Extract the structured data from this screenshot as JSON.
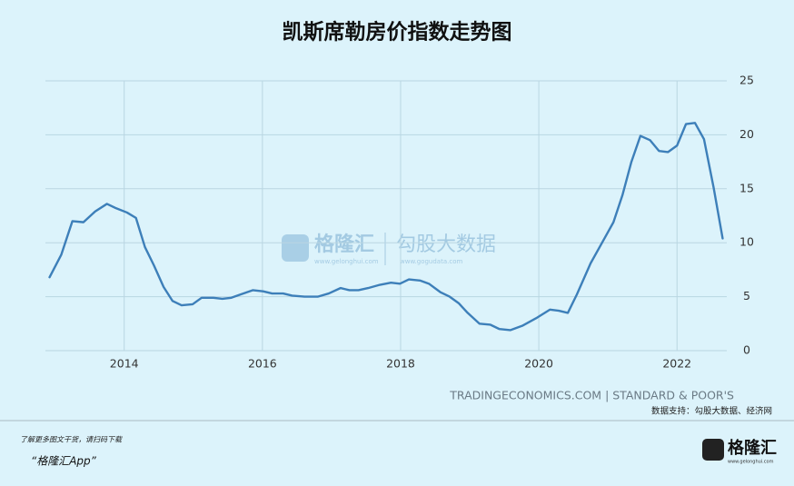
{
  "chart_data": {
    "type": "line",
    "title": "凯斯席勒房价指数走势图",
    "x": [
      2012.92,
      2013.09,
      2013.25,
      2013.41,
      2013.58,
      2013.75,
      2013.88,
      2014.04,
      2014.17,
      2014.3,
      2014.43,
      2014.57,
      2014.7,
      2014.83,
      2014.99,
      2015.12,
      2015.29,
      2015.42,
      2015.55,
      2015.68,
      2015.86,
      2016.01,
      2016.14,
      2016.3,
      2016.43,
      2016.61,
      2016.8,
      2016.96,
      2017.13,
      2017.26,
      2017.39,
      2017.53,
      2017.7,
      2017.86,
      2017.99,
      2018.12,
      2018.28,
      2018.41,
      2018.58,
      2018.71,
      2018.84,
      2018.97,
      2019.14,
      2019.3,
      2019.43,
      2019.59,
      2019.76,
      2019.96,
      2020.16,
      2020.29,
      2020.42,
      2020.55,
      2020.75,
      2020.95,
      2021.08,
      2021.21,
      2021.34,
      2021.47,
      2021.61,
      2021.74,
      2021.87,
      2022.0,
      2022.13,
      2022.26,
      2022.39,
      2022.53,
      2022.66
    ],
    "series": [
      {
        "color": "#3d7fb9",
        "values": [
          6.8,
          8.9,
          12.0,
          11.9,
          12.9,
          13.6,
          13.2,
          12.8,
          12.3,
          9.6,
          7.9,
          5.9,
          4.6,
          4.2,
          4.3,
          4.9,
          4.9,
          4.8,
          4.9,
          5.2,
          5.6,
          5.5,
          5.3,
          5.3,
          5.1,
          5.0,
          5.0,
          5.3,
          5.8,
          5.6,
          5.6,
          5.8,
          6.1,
          6.3,
          6.2,
          6.6,
          6.5,
          6.2,
          5.4,
          5.0,
          4.4,
          3.5,
          2.5,
          2.4,
          2.0,
          1.9,
          2.3,
          3.0,
          3.8,
          3.7,
          3.5,
          5.2,
          8.1,
          10.4,
          11.9,
          14.4,
          17.5,
          19.9,
          19.5,
          18.5,
          18.4,
          19.0,
          21.0,
          21.1,
          19.6,
          15.1,
          10.4
        ]
      }
    ],
    "xlim": [
      2012.86,
      2022.72
    ],
    "xticks": [
      2014,
      2016,
      2018,
      2020,
      2022
    ],
    "ylim": [
      0,
      25
    ],
    "yticks": [
      0,
      5,
      10,
      15,
      20,
      25
    ],
    "grid": true,
    "source": "TRADINGECONOMICS.COM | STANDARD & POOR'S",
    "credit": "数据支持：勾股大数据、经济网",
    "watermark": {
      "brand": "格隆汇",
      "brand_url": "www.gelonghui.com",
      "partner": "勾股大数据",
      "partner_url": "www.gogudata.com"
    }
  },
  "footer": {
    "note": "了解更多图文干货，请扫码下载",
    "app": "“格隆汇App”",
    "logo": "格隆汇",
    "logo_url": "www.gelonghui.com"
  }
}
